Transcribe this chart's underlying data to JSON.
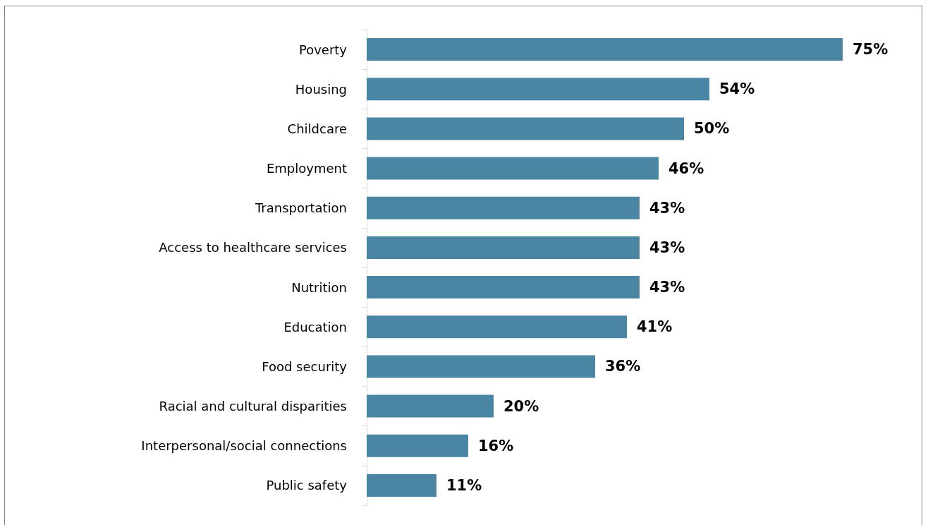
{
  "chart_data": {
    "type": "bar",
    "orientation": "horizontal",
    "categories": [
      "Poverty",
      "Housing",
      "Childcare",
      "Employment",
      "Transportation",
      "Access to healthcare services",
      "Nutrition",
      "Education",
      "Food security",
      "Racial and cultural disparities",
      "Interpersonal/social connections",
      "Public safety"
    ],
    "values": [
      75,
      54,
      50,
      46,
      43,
      43,
      43,
      41,
      36,
      20,
      16,
      11
    ],
    "value_labels": [
      "75%",
      "54%",
      "50%",
      "46%",
      "43%",
      "43%",
      "43%",
      "41%",
      "36%",
      "20%",
      "16%",
      "11%"
    ],
    "color": "#4a86a4"
  }
}
